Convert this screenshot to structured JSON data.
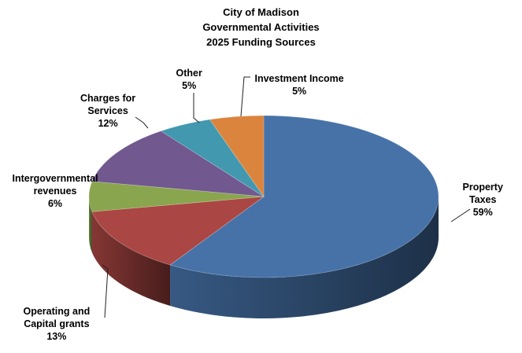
{
  "chart_data": {
    "type": "pie",
    "title": [
      "City of Madison",
      "Governmental Activities",
      "2025 Funding Sources"
    ],
    "slices": [
      {
        "name": "Property Taxes",
        "label_lines": [
          "Property",
          "Taxes"
        ],
        "value": 59,
        "value_label": "59%",
        "color": "#4672A8"
      },
      {
        "name": "Operating and Capital grants",
        "label_lines": [
          "Operating and",
          "Capital grants"
        ],
        "value": 13,
        "value_label": "13%",
        "color": "#AA4643"
      },
      {
        "name": "Intergovernmental revenues",
        "label_lines": [
          "Intergovernmental",
          "revenues"
        ],
        "value": 6,
        "value_label": "6%",
        "color": "#89A54E"
      },
      {
        "name": "Charges for Services",
        "label_lines": [
          "Charges for",
          "Services"
        ],
        "value": 12,
        "value_label": "12%",
        "color": "#71588F"
      },
      {
        "name": "Other",
        "label_lines": [
          "Other"
        ],
        "value": 5,
        "value_label": "5%",
        "color": "#4198AF"
      },
      {
        "name": "Investment Income",
        "label_lines": [
          "Investment Income"
        ],
        "value": 5,
        "value_label": "5%",
        "color": "#DB843D"
      }
    ],
    "style": "3d",
    "legend": "none"
  }
}
